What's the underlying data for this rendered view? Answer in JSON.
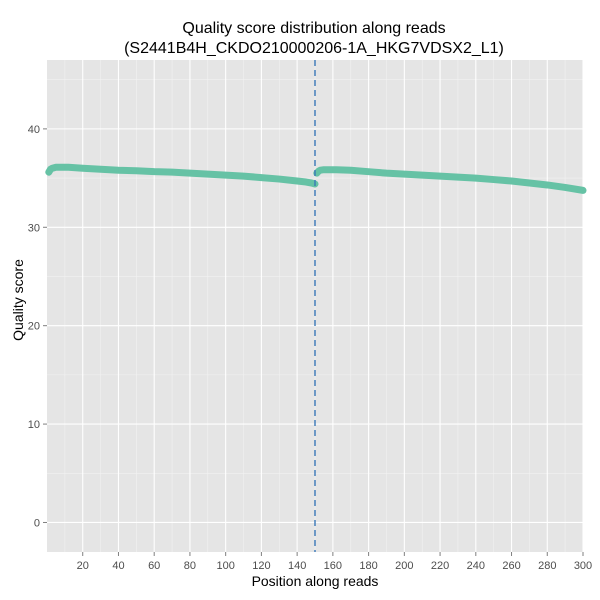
{
  "chart_data": {
    "type": "line",
    "title": "Quality score distribution along reads",
    "subtitle": "(S2441B4H_CKDO210000206-1A_HKG7VDSX2_L1)",
    "xlabel": "Position along reads",
    "ylabel": "Quality score",
    "xlim": [
      0,
      300
    ],
    "ylim": [
      -3,
      47
    ],
    "x_ticks": [
      20,
      40,
      60,
      80,
      100,
      120,
      140,
      160,
      180,
      200,
      220,
      240,
      260,
      280,
      300
    ],
    "y_ticks": [
      0,
      10,
      20,
      30,
      40
    ],
    "grid": true,
    "vline_x": 150,
    "series": [
      {
        "color": "#66c2a5",
        "segments": [
          {
            "x": [
              1,
              2,
              3,
              5,
              8,
              12,
              20,
              30,
              40,
              50,
              60,
              70,
              80,
              90,
              100,
              110,
              120,
              130,
              140,
              145,
              148,
              150
            ],
            "y": [
              35.6,
              35.9,
              36.0,
              36.1,
              36.1,
              36.1,
              36.0,
              35.9,
              35.8,
              35.75,
              35.65,
              35.6,
              35.5,
              35.4,
              35.3,
              35.2,
              35.05,
              34.9,
              34.7,
              34.6,
              34.5,
              34.4
            ]
          },
          {
            "x": [
              151,
              152,
              153,
              155,
              158,
              162,
              170,
              180,
              190,
              200,
              210,
              220,
              230,
              240,
              250,
              260,
              270,
              280,
              290,
              300
            ],
            "y": [
              35.5,
              35.7,
              35.8,
              35.85,
              35.85,
              35.85,
              35.8,
              35.65,
              35.5,
              35.4,
              35.3,
              35.2,
              35.1,
              35.0,
              34.85,
              34.7,
              34.5,
              34.3,
              34.05,
              33.75
            ]
          }
        ]
      }
    ]
  }
}
